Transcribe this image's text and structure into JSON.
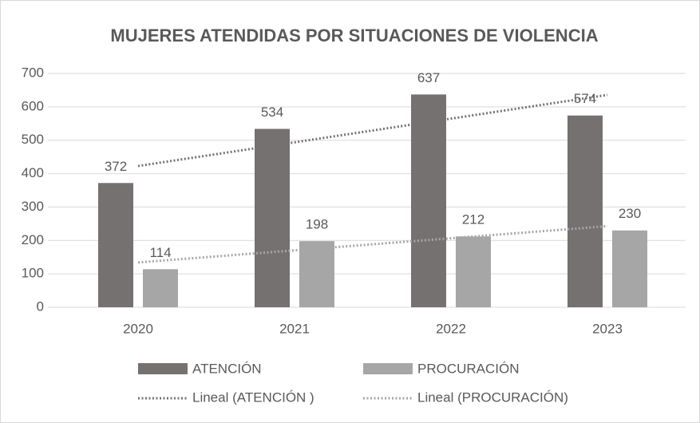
{
  "chart_data": {
    "type": "bar",
    "title": "MUJERES ATENDIDAS POR SITUACIONES DE VIOLENCIA",
    "categories": [
      "2020",
      "2021",
      "2022",
      "2023"
    ],
    "series": [
      {
        "name": "ATENCIÓN",
        "color": "#767171",
        "values": [
          372,
          534,
          637,
          574
        ],
        "trendline": {
          "name": "Lineal (ATENCIÓN )",
          "color": "#767171"
        }
      },
      {
        "name": "PROCURACIÓN",
        "color": "#a6a6a6",
        "values": [
          114,
          198,
          212,
          230
        ],
        "trendline": {
          "name": "Lineal (PROCURACIÓN)",
          "color": "#a6a6a6"
        }
      }
    ],
    "ylim": [
      0,
      700
    ],
    "yticks": [
      0,
      100,
      200,
      300,
      400,
      500,
      600,
      700
    ],
    "grid": true,
    "legend": "bottom"
  }
}
